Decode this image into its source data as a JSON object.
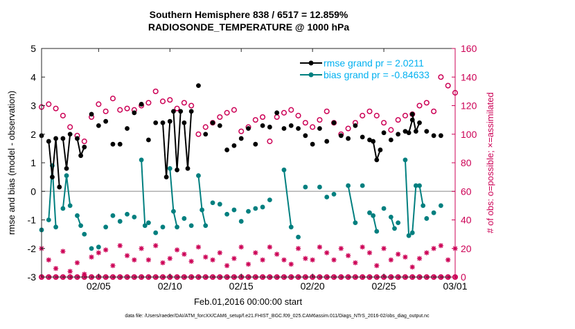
{
  "chart_data": {
    "type": "line",
    "title_line1": "Southern Hemisphere 838 / 6517 = 12.859%",
    "title_line2": "RADIOSONDE_TEMPERATURE @ 1000 hPa",
    "xlabel": "Feb.01,2016 00:00:00 start",
    "ylabel_left": "rmse and bias (model - observation)",
    "ylabel_right": "# of obs: o=possible; ×=assimilated",
    "footnote": "data file: /Users/raeder/DAI/ATM_forcXX/CAM6_setup/f.e21.FHIST_BGC.f09_025.CAM6assim.011/Diags_NTrS_2016-02/obs_diag_output.nc",
    "xlim": [
      1,
      30
    ],
    "ylim_left": [
      -3,
      5
    ],
    "ylim_right": [
      0,
      160
    ],
    "x_ticks": [
      5,
      10,
      15,
      20,
      25,
      30
    ],
    "x_tick_labels": [
      "02/05",
      "02/10",
      "02/15",
      "02/20",
      "02/25",
      "03/01"
    ],
    "y_ticks_left": [
      -3,
      -2,
      -1,
      0,
      1,
      2,
      3,
      4,
      5
    ],
    "y_tick_labels_left": [
      "-3",
      "-2",
      "-1",
      "0",
      "1",
      "2",
      "3",
      "4",
      "5"
    ],
    "y_ticks_right": [
      0,
      20,
      40,
      60,
      80,
      100,
      120,
      140,
      160
    ],
    "y_tick_labels_right": [
      "0",
      "20",
      "40",
      "60",
      "80",
      "100",
      "120",
      "140",
      "160"
    ],
    "legend": {
      "placement": "top-right",
      "rmse_label": "rmse grand pr = 2.0211",
      "bias_label": "bias grand pr = -0.84633"
    },
    "colors": {
      "rmse": "#000000",
      "bias": "#007f7f",
      "obs": "#cc0055",
      "legend_text": "#00b0f0",
      "right_axis": "#cc0055",
      "zero_line": "#b0b0b0"
    },
    "rmse_segments": [
      [
        [
          1.0,
          1.95
        ]
      ],
      [
        [
          1.5,
          1.75
        ],
        [
          1.75,
          0.5
        ],
        [
          2.0,
          1.85
        ],
        [
          2.25,
          0.15
        ]
      ],
      [
        [
          2.5,
          1.85
        ],
        [
          2.75,
          0.8
        ],
        [
          3.0,
          2.0
        ]
      ],
      [
        [
          3.5,
          1.85
        ],
        [
          3.75,
          1.25
        ],
        [
          4.0,
          1.55
        ]
      ],
      [
        [
          4.5,
          2.7
        ]
      ],
      [
        [
          5.0,
          2.3
        ]
      ],
      [
        [
          5.5,
          2.45
        ]
      ],
      [
        [
          6.0,
          1.65
        ]
      ],
      [
        [
          6.5,
          1.65
        ]
      ],
      [
        [
          7.0,
          2.2
        ]
      ],
      [
        [
          7.5,
          2.75
        ]
      ],
      [
        [
          8.0,
          3.05
        ]
      ],
      [
        [
          8.5,
          1.8
        ]
      ],
      [
        [
          9.0,
          2.4
        ]
      ],
      [
        [
          9.5,
          2.4
        ],
        [
          9.75,
          0.5
        ],
        [
          10.0,
          2.45
        ]
      ],
      [
        [
          10.25,
          2.8
        ],
        [
          10.5,
          0.75
        ],
        [
          10.75,
          2.8
        ]
      ],
      [
        [
          11.0,
          2.4
        ],
        [
          11.25,
          0.8
        ],
        [
          11.5,
          2.8
        ]
      ],
      [
        [
          12.0,
          3.7
        ]
      ],
      [
        [
          12.5,
          2.0
        ]
      ],
      [
        [
          13.0,
          2.4
        ]
      ],
      [
        [
          13.5,
          2.3
        ]
      ],
      [
        [
          14.0,
          1.45
        ]
      ],
      [
        [
          14.5,
          1.6
        ]
      ],
      [
        [
          15.0,
          1.85
        ]
      ],
      [
        [
          15.5,
          2.2
        ]
      ],
      [
        [
          16.0,
          1.65
        ]
      ],
      [
        [
          16.5,
          2.3
        ]
      ],
      [
        [
          17.0,
          2.25
        ]
      ],
      [
        [
          17.5,
          2.75
        ]
      ],
      [
        [
          18.0,
          2.2
        ]
      ],
      [
        [
          18.5,
          2.3
        ]
      ],
      [
        [
          19.0,
          2.2
        ]
      ],
      [
        [
          19.5,
          1.95
        ]
      ],
      [
        [
          20.0,
          1.65
        ]
      ],
      [
        [
          20.5,
          2.2
        ]
      ],
      [
        [
          21.0,
          1.75
        ]
      ],
      [
        [
          21.5,
          2.4
        ]
      ],
      [
        [
          22.0,
          1.95
        ]
      ],
      [
        [
          22.5,
          1.85
        ]
      ],
      [
        [
          23.0,
          2.3
        ]
      ],
      [
        [
          23.5,
          1.9
        ]
      ],
      [
        [
          24.0,
          1.8
        ]
      ],
      [
        [
          24.25,
          1.75
        ],
        [
          24.5,
          1.1
        ],
        [
          24.75,
          1.45
        ]
      ],
      [
        [
          25.0,
          2.05
        ]
      ],
      [
        [
          25.5,
          1.8
        ]
      ],
      [
        [
          26.0,
          2.0
        ]
      ],
      [
        [
          26.5,
          2.1
        ],
        [
          26.75,
          2.05
        ],
        [
          27.0,
          2.5
        ]
      ],
      [
        [
          27.0,
          2.7
        ],
        [
          27.25,
          2.1
        ],
        [
          27.5,
          2.4
        ]
      ],
      [
        [
          28.0,
          2.1
        ]
      ],
      [
        [
          28.5,
          1.95
        ]
      ],
      [
        [
          29.0,
          1.95
        ]
      ]
    ],
    "bias_segments": [
      [
        [
          1.0,
          -1.35
        ]
      ],
      [
        [
          1.5,
          -1.0
        ],
        [
          1.75,
          0.9
        ],
        [
          2.0,
          -1.25
        ]
      ],
      [
        [
          2.5,
          -0.6
        ],
        [
          2.75,
          0.55
        ],
        [
          3.0,
          -0.5
        ]
      ],
      [
        [
          3.5,
          -0.85
        ],
        [
          3.75,
          -1.2
        ]
      ],
      [
        [
          4.0,
          -1.5
        ]
      ],
      [
        [
          4.5,
          -2.0
        ]
      ],
      [
        [
          5.0,
          -1.95
        ]
      ],
      [
        [
          5.5,
          -1.25
        ]
      ],
      [
        [
          6.0,
          -0.85
        ]
      ],
      [
        [
          6.5,
          -1.05
        ]
      ],
      [
        [
          7.0,
          -0.8
        ]
      ],
      [
        [
          7.5,
          -0.9
        ]
      ],
      [
        [
          8.0,
          1.1
        ],
        [
          8.25,
          -1.2
        ],
        [
          8.5,
          -1.1
        ]
      ],
      [
        [
          9.0,
          -1.45
        ]
      ],
      [
        [
          9.5,
          -1.25
        ]
      ],
      [
        [
          10.0,
          0.8
        ],
        [
          10.25,
          -0.7
        ],
        [
          10.5,
          -1.25
        ]
      ],
      [
        [
          11.0,
          -0.95
        ]
      ],
      [
        [
          11.5,
          -1.2
        ]
      ],
      [
        [
          12.0,
          0.55
        ],
        [
          12.25,
          -0.65
        ],
        [
          12.5,
          -1.2
        ]
      ],
      [
        [
          13.0,
          -0.4
        ]
      ],
      [
        [
          13.5,
          -0.45
        ]
      ],
      [
        [
          14.0,
          -0.8
        ]
      ],
      [
        [
          14.5,
          -0.65
        ]
      ],
      [
        [
          15.0,
          -1.05
        ]
      ],
      [
        [
          15.5,
          -0.7
        ]
      ],
      [
        [
          16.0,
          -0.6
        ]
      ],
      [
        [
          16.5,
          -0.55
        ]
      ],
      [
        [
          17.0,
          -0.3
        ]
      ],
      [
        [
          18.0,
          0.75
        ],
        [
          18.5,
          -1.25
        ]
      ],
      [
        [
          19.0,
          -1.6
        ]
      ],
      [
        [
          19.5,
          0.15
        ]
      ],
      [
        [
          20.5,
          0.15
        ]
      ],
      [
        [
          21.0,
          -0.2
        ]
      ],
      [
        [
          21.5,
          -0.1
        ]
      ],
      [
        [
          22.5,
          0.2
        ],
        [
          23.0,
          -1.1
        ]
      ],
      [
        [
          23.5,
          0.2
        ]
      ],
      [
        [
          24.0,
          -0.75
        ]
      ],
      [
        [
          24.25,
          -0.85
        ],
        [
          24.5,
          -1.4
        ]
      ],
      [
        [
          25.0,
          -0.6
        ]
      ],
      [
        [
          25.5,
          -0.9
        ],
        [
          25.75,
          -1.3
        ]
      ],
      [
        [
          26.0,
          -1.1
        ]
      ],
      [
        [
          26.5,
          1.1
        ],
        [
          26.75,
          -1.55
        ]
      ],
      [
        [
          27.0,
          -1.45
        ],
        [
          27.25,
          0.2
        ]
      ],
      [
        [
          27.5,
          0.2
        ],
        [
          27.75,
          -0.5
        ]
      ],
      [
        [
          28.0,
          -0.95
        ]
      ],
      [
        [
          28.5,
          -0.75
        ]
      ],
      [
        [
          29.0,
          -0.5
        ]
      ]
    ],
    "obs_possible": [
      [
        1.0,
        119
      ],
      [
        1.5,
        121
      ],
      [
        2.0,
        118
      ],
      [
        2.5,
        113
      ],
      [
        3.0,
        105
      ],
      [
        3.5,
        99
      ],
      [
        4.0,
        95
      ],
      [
        4.5,
        112
      ],
      [
        5.0,
        121
      ],
      [
        5.5,
        116
      ],
      [
        6.0,
        125
      ],
      [
        6.5,
        117
      ],
      [
        7.0,
        118
      ],
      [
        7.5,
        117
      ],
      [
        8.0,
        120
      ],
      [
        8.5,
        122
      ],
      [
        9.0,
        130
      ],
      [
        9.5,
        123
      ],
      [
        10.0,
        124
      ],
      [
        10.5,
        118
      ],
      [
        11.0,
        122
      ],
      [
        11.5,
        120
      ],
      [
        12.0,
        100
      ],
      [
        12.5,
        105
      ],
      [
        13.0,
        108
      ],
      [
        13.5,
        112
      ],
      [
        14.0,
        115
      ],
      [
        14.5,
        117
      ],
      [
        15.0,
        102
      ],
      [
        15.5,
        105
      ],
      [
        16.0,
        110
      ],
      [
        16.5,
        112
      ],
      [
        17.0,
        95
      ],
      [
        17.5,
        112
      ],
      [
        18.0,
        115
      ],
      [
        18.5,
        117
      ],
      [
        19.0,
        113
      ],
      [
        19.5,
        108
      ],
      [
        20.0,
        105
      ],
      [
        20.5,
        110
      ],
      [
        21.0,
        116
      ],
      [
        21.5,
        108
      ],
      [
        22.0,
        100
      ],
      [
        22.5,
        104
      ],
      [
        23.0,
        108
      ],
      [
        23.5,
        113
      ],
      [
        24.0,
        116
      ],
      [
        24.5,
        113
      ],
      [
        25.0,
        108
      ],
      [
        25.5,
        103
      ],
      [
        26.0,
        110
      ],
      [
        26.5,
        113
      ],
      [
        27.0,
        114
      ],
      [
        27.5,
        120
      ],
      [
        28.0,
        122
      ],
      [
        28.5,
        116
      ],
      [
        29.0,
        140
      ],
      [
        29.5,
        134
      ],
      [
        30.0,
        129
      ]
    ],
    "obs_assimilated": [
      [
        1.0,
        20
      ],
      [
        1.5,
        12
      ],
      [
        2.0,
        6
      ],
      [
        2.5,
        18
      ],
      [
        3.0,
        4
      ],
      [
        3.5,
        10
      ],
      [
        4.0,
        2
      ],
      [
        4.5,
        14
      ],
      [
        5.0,
        17
      ],
      [
        5.5,
        19
      ],
      [
        6.0,
        8
      ],
      [
        6.5,
        22
      ],
      [
        7.0,
        15
      ],
      [
        7.5,
        12
      ],
      [
        8.0,
        20
      ],
      [
        8.5,
        12
      ],
      [
        9.0,
        22
      ],
      [
        9.5,
        10
      ],
      [
        10.0,
        13
      ],
      [
        10.5,
        19
      ],
      [
        11.0,
        16
      ],
      [
        11.5,
        11
      ],
      [
        12.0,
        21
      ],
      [
        12.5,
        14
      ],
      [
        13.0,
        12
      ],
      [
        13.5,
        17
      ],
      [
        14.0,
        8
      ],
      [
        14.5,
        13
      ],
      [
        15.0,
        21
      ],
      [
        15.5,
        9
      ],
      [
        16.0,
        17
      ],
      [
        16.5,
        12
      ],
      [
        17.0,
        21
      ],
      [
        17.5,
        16
      ],
      [
        18.0,
        12
      ],
      [
        18.5,
        9
      ],
      [
        19.0,
        20
      ],
      [
        19.5,
        13
      ],
      [
        20.0,
        12
      ],
      [
        20.5,
        21
      ],
      [
        21.0,
        17
      ],
      [
        21.5,
        12
      ],
      [
        22.0,
        20
      ],
      [
        22.5,
        15
      ],
      [
        23.0,
        10
      ],
      [
        23.5,
        21
      ],
      [
        24.0,
        17
      ],
      [
        24.5,
        8
      ],
      [
        25.0,
        20
      ],
      [
        25.5,
        12
      ],
      [
        26.0,
        16
      ],
      [
        26.5,
        14
      ],
      [
        27.0,
        7
      ],
      [
        27.5,
        13
      ],
      [
        28.0,
        17
      ],
      [
        28.5,
        20
      ],
      [
        29.0,
        22
      ],
      [
        29.5,
        12
      ],
      [
        30.0,
        20
      ]
    ]
  }
}
